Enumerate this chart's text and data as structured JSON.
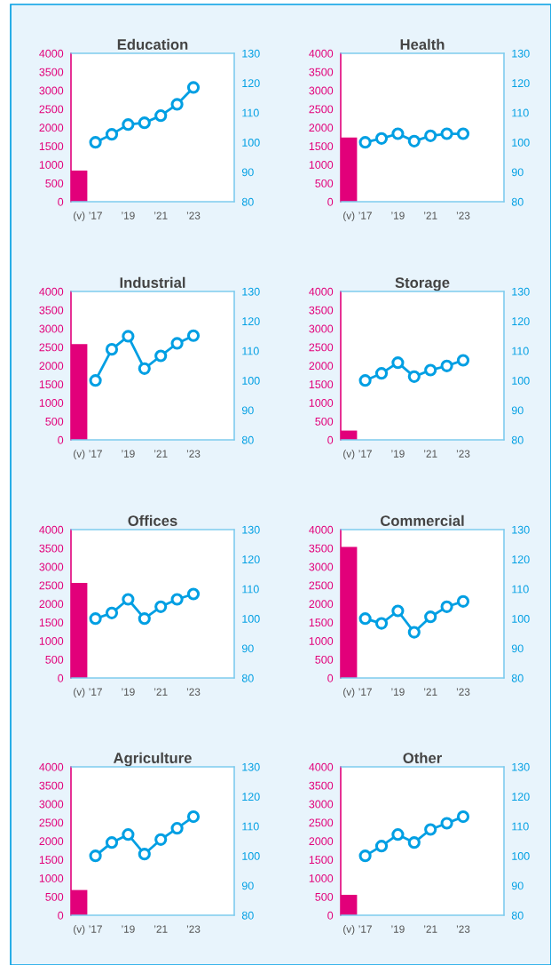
{
  "chart_data": [
    {
      "type": "bar",
      "title": "Education",
      "categories": [
        "(v)",
        "’17",
        null,
        "’19",
        null,
        "’21",
        null,
        "’23"
      ],
      "ylim": [
        0,
        4000
      ],
      "yticks": [
        0,
        500,
        1000,
        1500,
        2000,
        2500,
        3000,
        3500,
        4000
      ],
      "y2lim": [
        80,
        130
      ],
      "y2ticks": [
        80,
        90,
        100,
        110,
        120,
        130
      ],
      "marker": "circle",
      "series": [
        {
          "color": "#e2007a",
          "values": [
            840,
            null,
            null,
            null,
            null,
            null,
            null,
            null
          ]
        },
        {
          "type": "line",
          "axis": "y2",
          "color": "#009fe3",
          "values": [
            null,
            100,
            102.7,
            106,
            106.6,
            109,
            112.8,
            118.5
          ]
        }
      ]
    },
    {
      "type": "bar",
      "title": "Health",
      "categories": [
        "(v)",
        "’17",
        null,
        "’19",
        null,
        "’21",
        null,
        "’23"
      ],
      "ylim": [
        0,
        4000
      ],
      "yticks": [
        0,
        500,
        1000,
        1500,
        2000,
        2500,
        3000,
        3500,
        4000
      ],
      "y2lim": [
        80,
        130
      ],
      "y2ticks": [
        80,
        90,
        100,
        110,
        120,
        130
      ],
      "marker": "circle",
      "series": [
        {
          "color": "#e2007a",
          "values": [
            1730,
            null,
            null,
            null,
            null,
            null,
            null,
            null
          ]
        },
        {
          "type": "line",
          "axis": "y2",
          "color": "#009fe3",
          "values": [
            null,
            100,
            101.3,
            102.9,
            100.4,
            102.2,
            102.9,
            102.9
          ]
        }
      ]
    },
    {
      "type": "bar",
      "title": "Industrial",
      "categories": [
        "(v)",
        "’17",
        null,
        "’19",
        null,
        "’21",
        null,
        "’23"
      ],
      "ylim": [
        0,
        4000
      ],
      "yticks": [
        0,
        500,
        1000,
        1500,
        2000,
        2500,
        3000,
        3500,
        4000
      ],
      "y2lim": [
        80,
        130
      ],
      "y2ticks": [
        80,
        90,
        100,
        110,
        120,
        130
      ],
      "marker": "circle",
      "series": [
        {
          "color": "#e2007a",
          "values": [
            2580,
            null,
            null,
            null,
            null,
            null,
            null,
            null
          ]
        },
        {
          "type": "line",
          "axis": "y2",
          "color": "#009fe3",
          "values": [
            null,
            100,
            110.5,
            114.9,
            104,
            108.3,
            112.5,
            115.1
          ]
        }
      ]
    },
    {
      "type": "bar",
      "title": "Storage",
      "categories": [
        "(v)",
        "’17",
        null,
        "’19",
        null,
        "’21",
        null,
        "’23"
      ],
      "ylim": [
        0,
        4000
      ],
      "yticks": [
        0,
        500,
        1000,
        1500,
        2000,
        2500,
        3000,
        3500,
        4000
      ],
      "y2lim": [
        80,
        130
      ],
      "y2ticks": [
        80,
        90,
        100,
        110,
        120,
        130
      ],
      "marker": "circle",
      "series": [
        {
          "color": "#e2007a",
          "values": [
            250,
            null,
            null,
            null,
            null,
            null,
            null,
            null
          ]
        },
        {
          "type": "line",
          "axis": "y2",
          "color": "#009fe3",
          "values": [
            null,
            100,
            102.4,
            106,
            101.3,
            103.5,
            104.9,
            106.8
          ]
        }
      ]
    },
    {
      "type": "bar",
      "title": "Offices",
      "categories": [
        "(v)",
        "’17",
        null,
        "’19",
        null,
        "’21",
        null,
        "’23"
      ],
      "ylim": [
        0,
        4000
      ],
      "yticks": [
        0,
        500,
        1000,
        1500,
        2000,
        2500,
        3000,
        3500,
        4000
      ],
      "y2lim": [
        80,
        130
      ],
      "y2ticks": [
        80,
        90,
        100,
        110,
        120,
        130
      ],
      "marker": "circle",
      "series": [
        {
          "color": "#e2007a",
          "values": [
            2560,
            null,
            null,
            null,
            null,
            null,
            null,
            null
          ]
        },
        {
          "type": "line",
          "axis": "y2",
          "color": "#009fe3",
          "values": [
            null,
            100,
            101.9,
            106.5,
            100,
            104,
            106.5,
            108.3
          ]
        }
      ]
    },
    {
      "type": "bar",
      "title": "Commercial",
      "categories": [
        "(v)",
        "’17",
        null,
        "’19",
        null,
        "’21",
        null,
        "’23"
      ],
      "ylim": [
        0,
        4000
      ],
      "yticks": [
        0,
        500,
        1000,
        1500,
        2000,
        2500,
        3000,
        3500,
        4000
      ],
      "y2lim": [
        80,
        130
      ],
      "y2ticks": [
        80,
        90,
        100,
        110,
        120,
        130
      ],
      "marker": "circle",
      "series": [
        {
          "color": "#e2007a",
          "values": [
            3530,
            null,
            null,
            null,
            null,
            null,
            null,
            null
          ]
        },
        {
          "type": "line",
          "axis": "y2",
          "color": "#009fe3",
          "values": [
            null,
            100,
            98.4,
            102.6,
            95.4,
            100.6,
            104,
            105.8
          ]
        }
      ]
    },
    {
      "type": "bar",
      "title": "Agriculture",
      "categories": [
        "(v)",
        "’17",
        null,
        "’19",
        null,
        "’21",
        null,
        "’23"
      ],
      "ylim": [
        0,
        4000
      ],
      "yticks": [
        0,
        500,
        1000,
        1500,
        2000,
        2500,
        3000,
        3500,
        4000
      ],
      "y2lim": [
        80,
        130
      ],
      "y2ticks": [
        80,
        90,
        100,
        110,
        120,
        130
      ],
      "marker": "circle",
      "series": [
        {
          "color": "#e2007a",
          "values": [
            680,
            null,
            null,
            null,
            null,
            null,
            null,
            null
          ]
        },
        {
          "type": "line",
          "axis": "y2",
          "color": "#009fe3",
          "values": [
            null,
            100,
            104.5,
            107.2,
            100.6,
            105.5,
            109.3,
            113.2
          ]
        }
      ]
    },
    {
      "type": "bar",
      "title": "Other",
      "categories": [
        "(v)",
        "’17",
        null,
        "’19",
        null,
        "’21",
        null,
        "’23"
      ],
      "ylim": [
        0,
        4000
      ],
      "yticks": [
        0,
        500,
        1000,
        1500,
        2000,
        2500,
        3000,
        3500,
        4000
      ],
      "y2lim": [
        80,
        130
      ],
      "y2ticks": [
        80,
        90,
        100,
        110,
        120,
        130
      ],
      "marker": "circle",
      "series": [
        {
          "color": "#e2007a",
          "values": [
            550,
            null,
            null,
            null,
            null,
            null,
            null,
            null
          ]
        },
        {
          "type": "line",
          "axis": "y2",
          "color": "#009fe3",
          "values": [
            null,
            100,
            103.3,
            107.2,
            104.5,
            108.9,
            111,
            113.2
          ]
        }
      ]
    }
  ]
}
